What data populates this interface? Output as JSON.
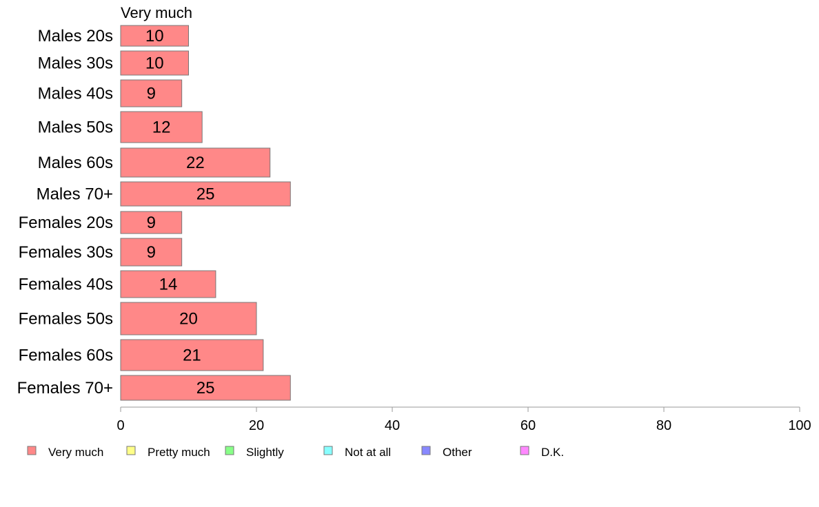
{
  "chart_data": {
    "type": "bar",
    "orientation": "horizontal",
    "categories": [
      "Males 20s",
      "Males 30s",
      "Males 40s",
      "Males 50s",
      "Males 60s",
      "Males 70+",
      "Females 20s",
      "Females 30s",
      "Females 40s",
      "Females 50s",
      "Females 60s",
      "Females 70+"
    ],
    "series": [
      {
        "name": "Very much",
        "values": [
          10,
          10,
          9,
          12,
          22,
          25,
          9,
          9,
          14,
          20,
          21,
          25
        ],
        "color": "#ff8888"
      }
    ],
    "series_heading": "Very much",
    "xlim": [
      0,
      100
    ],
    "x_ticks": [
      0,
      20,
      40,
      60,
      80,
      100
    ],
    "legend": {
      "placement": "bottom",
      "items": [
        {
          "label": "Very much",
          "color": "#ff8888"
        },
        {
          "label": "Pretty much",
          "color": "#ffff88"
        },
        {
          "label": "Slightly",
          "color": "#88ff88"
        },
        {
          "label": "Not at all",
          "color": "#88ffff"
        },
        {
          "label": "Other",
          "color": "#8888ff"
        },
        {
          "label": "D.K.",
          "color": "#ff88ff"
        }
      ]
    },
    "grid": false
  }
}
